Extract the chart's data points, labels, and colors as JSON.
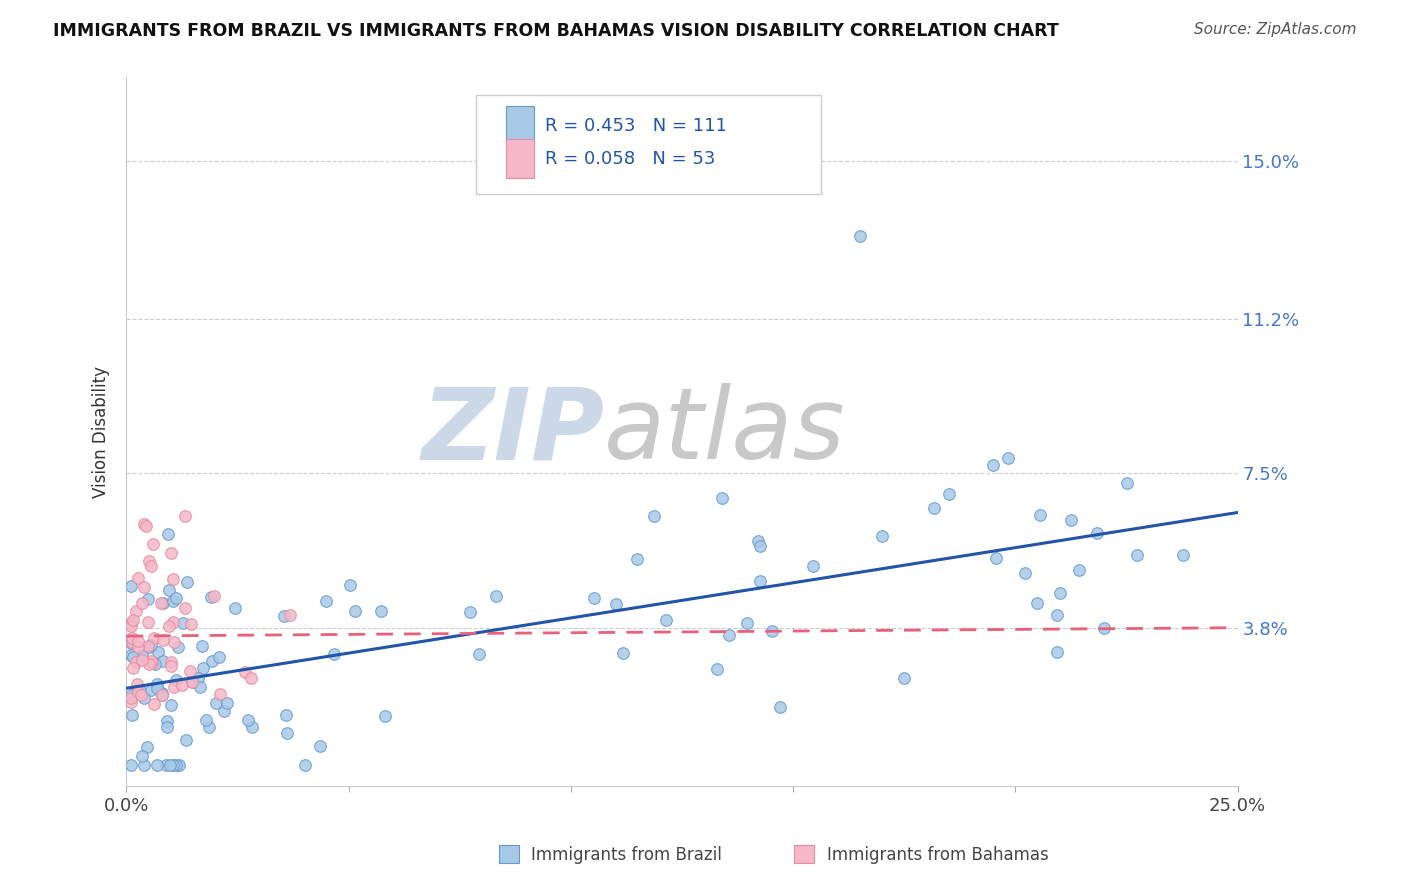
{
  "title": "IMMIGRANTS FROM BRAZIL VS IMMIGRANTS FROM BAHAMAS VISION DISABILITY CORRELATION CHART",
  "source": "Source: ZipAtlas.com",
  "xlabel_brazil": "Immigrants from Brazil",
  "xlabel_bahamas": "Immigrants from Bahamas",
  "ylabel": "Vision Disability",
  "xlim": [
    0.0,
    0.25
  ],
  "ylim": [
    0.0,
    0.17
  ],
  "xtick_positions": [
    0.0,
    0.05,
    0.1,
    0.15,
    0.2,
    0.25
  ],
  "xtick_labels_show": [
    "0.0%",
    "",
    "",
    "",
    "",
    "25.0%"
  ],
  "ytick_values": [
    0.038,
    0.075,
    0.112,
    0.15
  ],
  "ytick_labels": [
    "3.8%",
    "7.5%",
    "11.2%",
    "15.0%"
  ],
  "brazil_R": 0.453,
  "brazil_N": 111,
  "bahamas_R": 0.058,
  "bahamas_N": 53,
  "brazil_color": "#a8c8e8",
  "bahamas_color": "#f4b8c8",
  "brazil_edge_color": "#6699cc",
  "bahamas_edge_color": "#e88aa0",
  "brazil_line_color": "#2255aa",
  "bahamas_line_color": "#e8607a",
  "right_axis_color": "#4477cc",
  "legend_text_color": "#2255aa",
  "title_color": "#111111",
  "source_color": "#555555",
  "grid_color": "#cccccc",
  "watermark_zip_color": "#ccd8e8",
  "watermark_atlas_color": "#c8c8c8"
}
